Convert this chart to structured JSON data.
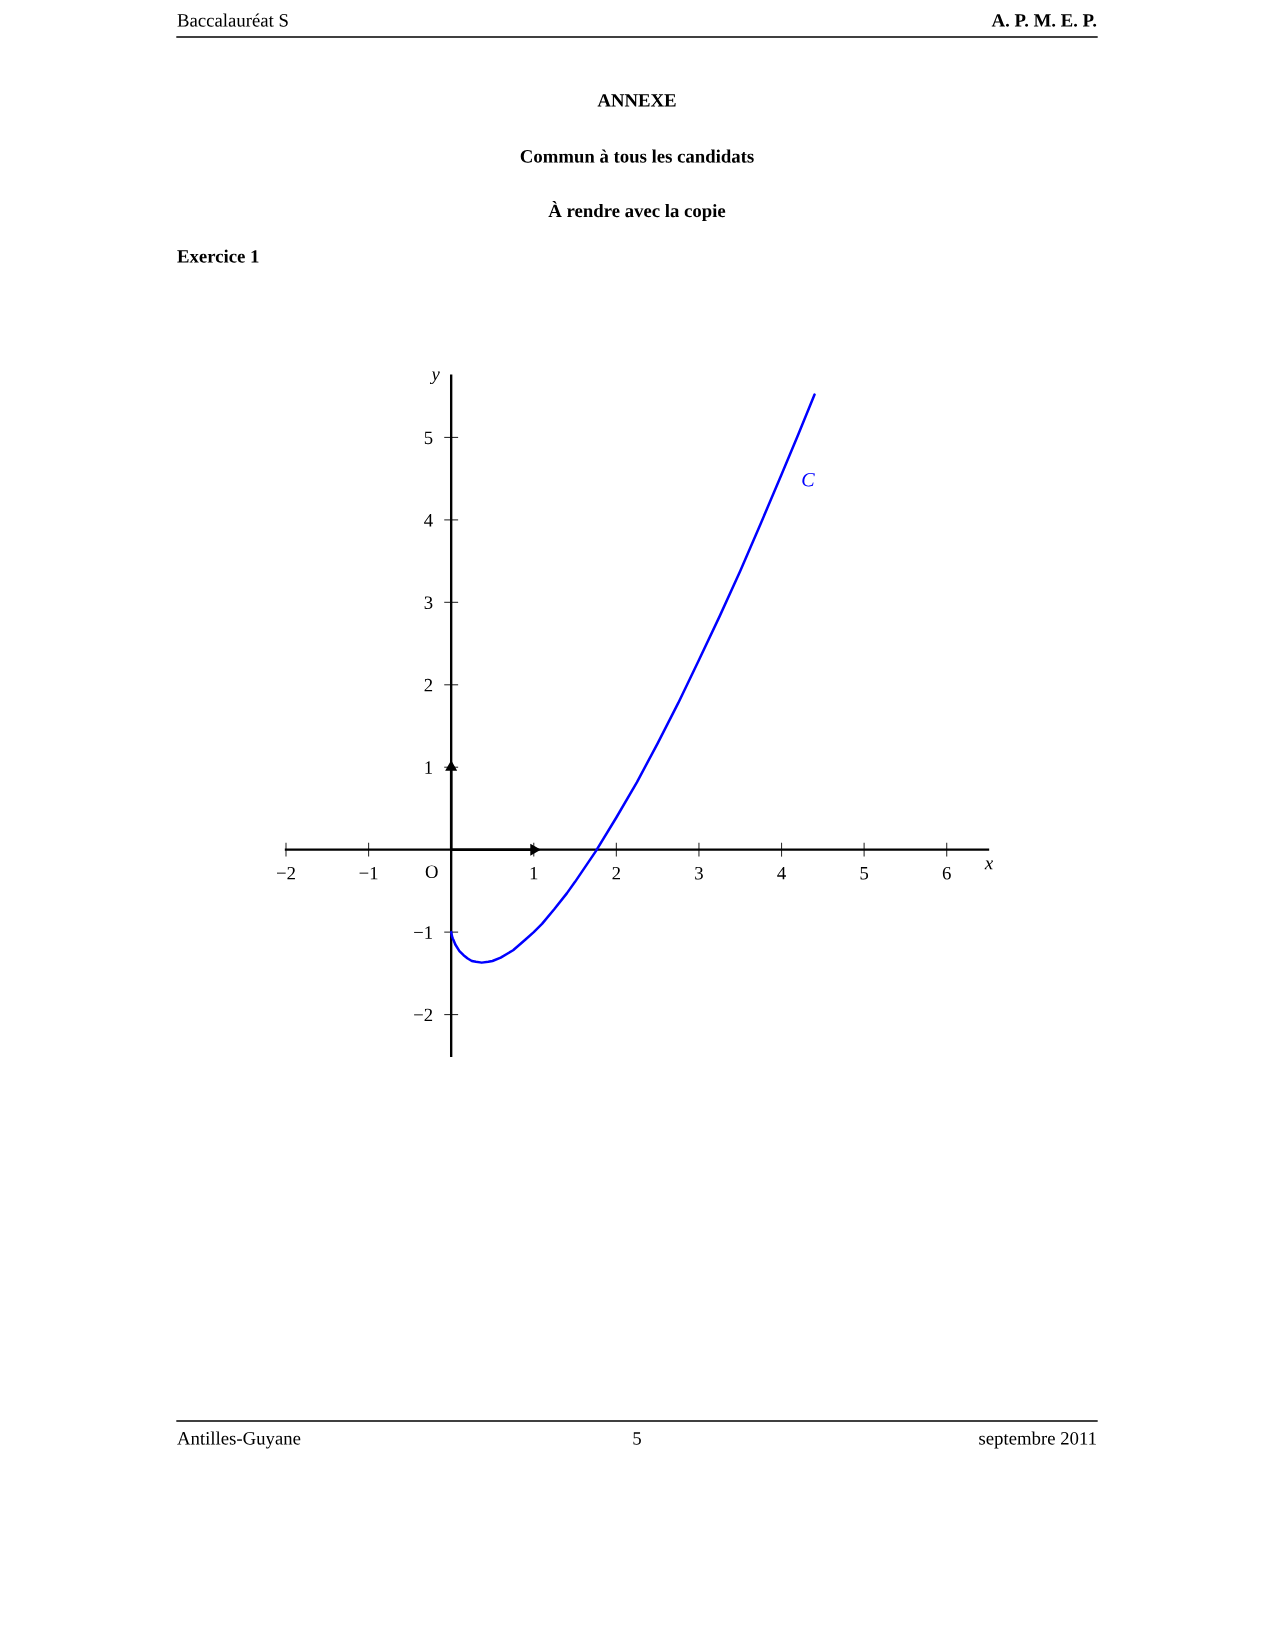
{
  "chart_data": {
    "type": "line",
    "title": "ANNEXE",
    "subtitle": "Commun à tous les candidats",
    "xlabel": "x",
    "ylabel": "y",
    "xlim": [
      -2,
      6.5
    ],
    "ylim": [
      -2.5,
      5.75
    ],
    "xticks": [
      {
        "value": -2,
        "label": "−2"
      },
      {
        "value": -1,
        "label": "−1"
      },
      1,
      2,
      3,
      4,
      5,
      6
    ],
    "yticks": [
      {
        "value": -2,
        "label": "−2"
      },
      {
        "value": -1,
        "label": "−1"
      },
      1,
      2,
      3,
      4,
      5
    ],
    "series": [
      {
        "name": "C",
        "color": "#0000ff",
        "x": [
          0,
          0.01,
          0.02,
          0.03,
          0.05,
          0.1,
          0.15,
          0.2,
          0.25,
          0.3,
          0.37,
          0.45,
          0.5,
          0.6,
          0.75,
          0.9,
          1,
          1.1,
          1.25,
          1.4,
          1.5,
          1.75,
          2,
          2.25,
          2.5,
          2.75,
          3,
          3.25,
          3.5,
          3.75,
          4,
          4.2,
          4.4
        ],
        "values": [
          -1.0,
          -1.05,
          -1.08,
          -1.1,
          -1.15,
          -1.23,
          -1.28,
          -1.32,
          -1.35,
          -1.36,
          -1.37,
          -1.36,
          -1.35,
          -1.31,
          -1.22,
          -1.09,
          -1.0,
          -0.9,
          -0.72,
          -0.53,
          -0.39,
          -0.02,
          0.39,
          0.82,
          1.29,
          1.78,
          2.3,
          2.83,
          3.38,
          3.96,
          4.55,
          5.03,
          5.52
        ]
      },
      {
        "type": "line",
        "color": "#000000",
        "x": [
          0,
          1
        ],
        "values": [
          0,
          0
        ],
        "marker": "triangle"
      },
      {
        "type": "line",
        "color": "#000000",
        "x": [
          0,
          0
        ],
        "values": [
          0,
          1
        ],
        "marker": "triangle"
      }
    ],
    "annotations": [
      "Baccalauréat S",
      "A. P. M. E. P.",
      "À rendre avec la copie",
      "Exercice 1",
      {
        "text": "O",
        "x": 0,
        "y": 0
      },
      "Antilles-Guyane",
      "5",
      "septembre 2011"
    ]
  }
}
